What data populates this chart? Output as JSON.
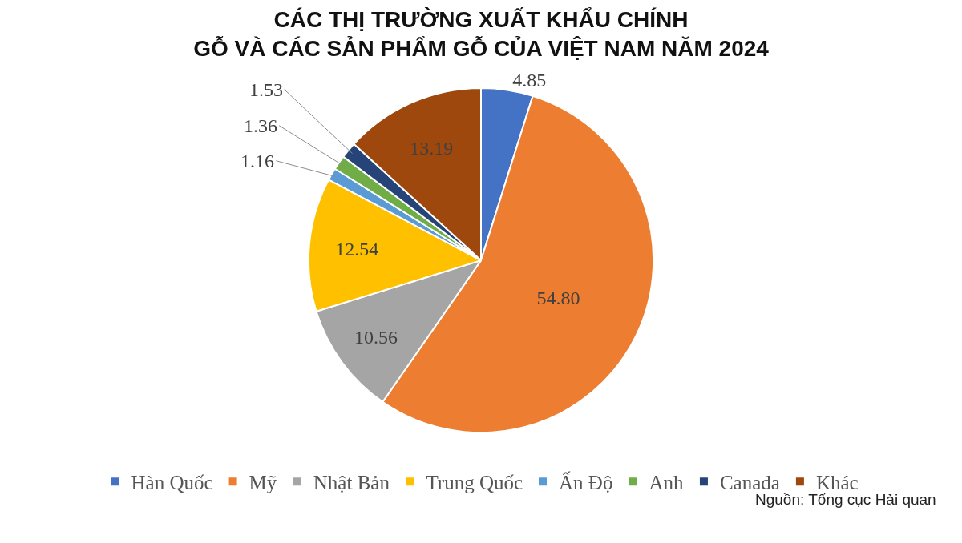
{
  "chart_data": {
    "type": "pie",
    "title": "CÁC THỊ TRƯỜNG XUẤT KHẨU CHÍNH\nGỖ VÀ CÁC SẢN PHẨM GỖ CỦA VIỆT NAM NĂM 2024",
    "categories": [
      "Hàn Quốc",
      "Mỹ",
      "Nhật Bản",
      "Trung Quốc",
      "Ấn Độ",
      "Anh",
      "Canada",
      "Khác"
    ],
    "values": [
      4.85,
      54.8,
      10.56,
      12.54,
      1.16,
      1.36,
      1.53,
      13.19
    ],
    "value_labels": [
      "4.85",
      "54.80",
      "10.56",
      "12.54",
      "1.16",
      "1.36",
      "1.53",
      "13.19"
    ],
    "colors": [
      "#4472c4",
      "#ed7d31",
      "#a5a5a5",
      "#ffc000",
      "#5b9bd5",
      "#70ad47",
      "#264478",
      "#9e480e"
    ],
    "legend": "bottom",
    "annotations": [
      "Nguồn: Tổng cục Hải quan"
    ]
  }
}
